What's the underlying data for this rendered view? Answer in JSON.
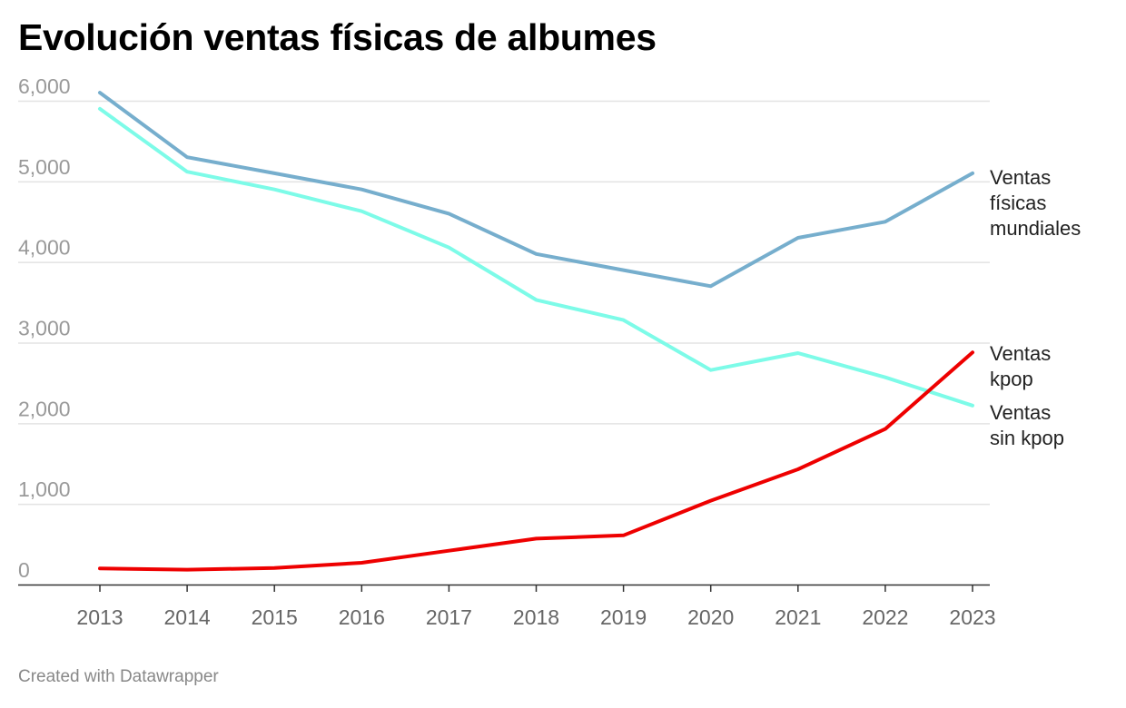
{
  "header": {
    "title": "Evolución ventas físicas de albumes"
  },
  "footer": {
    "credit": "Created with Datawrapper"
  },
  "chart_data": {
    "type": "line",
    "title": "Evolución ventas físicas de albumes",
    "xlabel": "",
    "ylabel": "",
    "x": [
      "2013",
      "2014",
      "2015",
      "2016",
      "2017",
      "2018",
      "2019",
      "2020",
      "2021",
      "2022",
      "2023"
    ],
    "y_ticks": [
      "0",
      "1,000",
      "2,000",
      "3,000",
      "4,000",
      "5,000",
      "6,000"
    ],
    "ylim": [
      0,
      6000
    ],
    "grid": true,
    "legend": "direct labels at right end of lines",
    "series": [
      {
        "key": "mundiales",
        "name": "Ventas físicas mundiales",
        "label_lines": [
          "Ventas",
          "físicas",
          "mundiales"
        ],
        "color": "#76aecd",
        "values": [
          6100,
          5300,
          5100,
          4900,
          4600,
          4100,
          3900,
          3700,
          4300,
          4500,
          5100
        ]
      },
      {
        "key": "sin_kpop",
        "name": "Ventas sin kpop",
        "label_lines": [
          "Ventas",
          "sin kpop"
        ],
        "color": "#7dfbe8",
        "values": [
          5900,
          5120,
          4900,
          4630,
          4180,
          3530,
          3280,
          2660,
          2870,
          2570,
          2220
        ]
      },
      {
        "key": "kpop",
        "name": "Ventas kpop",
        "label_lines": [
          "Ventas",
          "kpop"
        ],
        "color": "#ee0000",
        "values": [
          200,
          185,
          205,
          270,
          420,
          570,
          610,
          1040,
          1430,
          1930,
          2880
        ]
      }
    ]
  },
  "colors": {
    "axis_tick_text": "#999999",
    "x_tick_text": "#666666",
    "gridline": "#e3e3e3",
    "baseline": "#333333"
  }
}
